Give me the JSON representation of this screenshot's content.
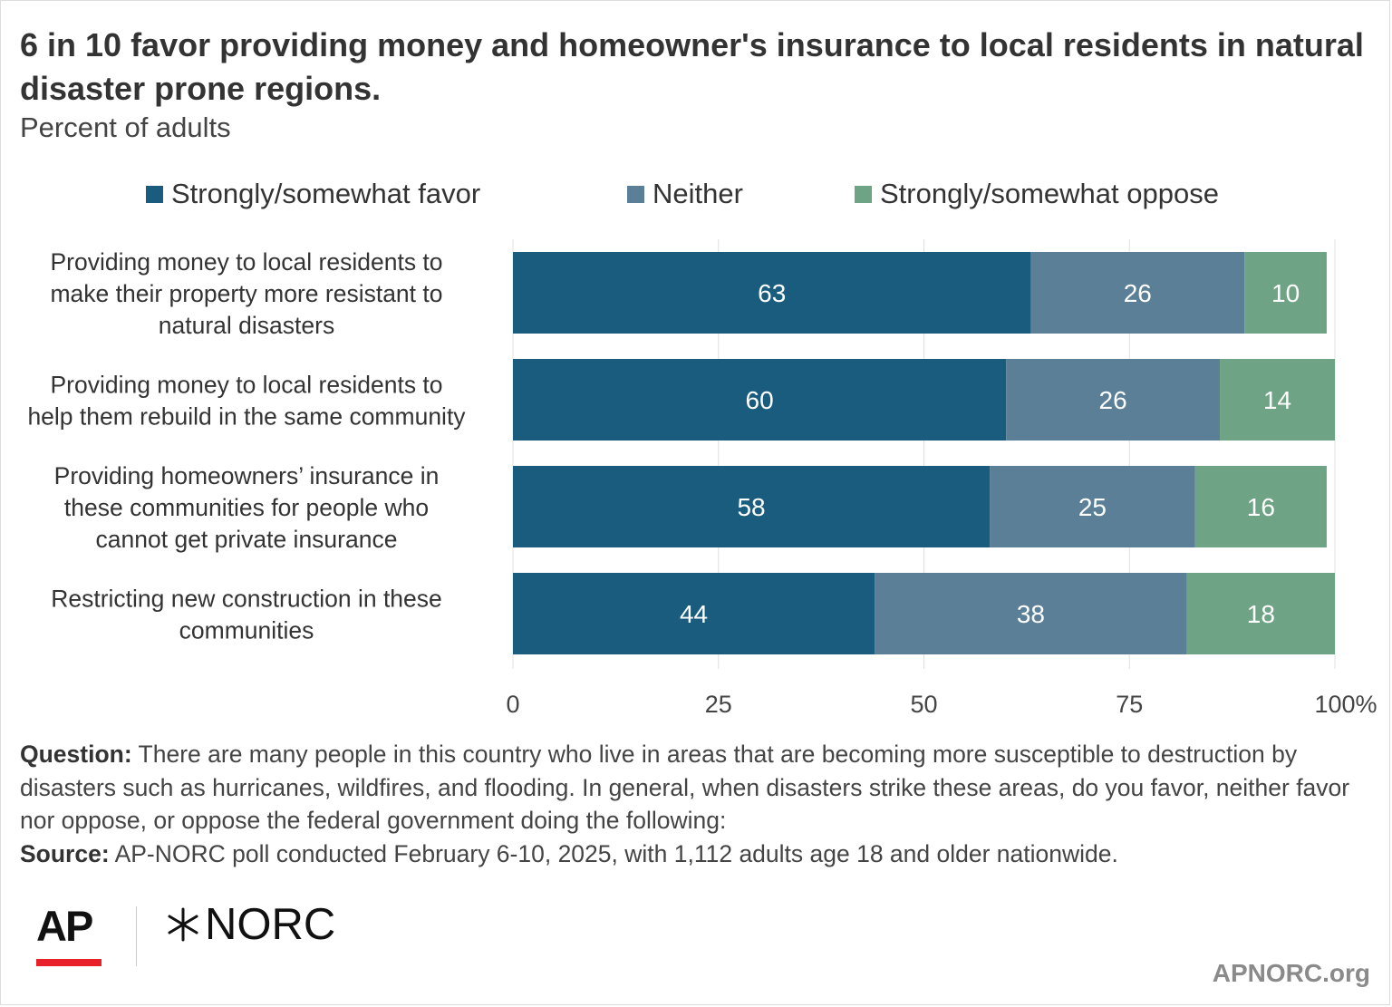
{
  "header": {
    "title": "6 in 10 favor providing money and homeowner's insurance to local residents in natural disaster prone regions.",
    "subtitle": "Percent of adults"
  },
  "chart_data": {
    "type": "bar",
    "orientation": "horizontal",
    "stacked": true,
    "categories": [
      "Providing money to local residents to make their property more resistant to natural disasters",
      "Providing money to local residents to help them rebuild in the same community",
      "Providing homeowners’ insurance in these communities for people who cannot get private insurance",
      "Restricting new construction in these communities"
    ],
    "category_lines": [
      [
        "Providing money to local residents to",
        "make their property more resistant to",
        "natural disasters"
      ],
      [
        "Providing money to local residents to",
        "help them rebuild in the same community"
      ],
      [
        "Providing homeowners’ insurance in",
        "these communities for people who",
        "cannot get private insurance"
      ],
      [
        "Restricting new construction in these",
        "communities"
      ]
    ],
    "series": [
      {
        "name": "Strongly/somewhat favor",
        "color": "#1a5c7e",
        "values": [
          63,
          60,
          58,
          44
        ]
      },
      {
        "name": "Neither",
        "color": "#5b7f96",
        "values": [
          26,
          26,
          25,
          38
        ]
      },
      {
        "name": "Strongly/somewhat oppose",
        "color": "#6fa385",
        "values": [
          10,
          14,
          16,
          18
        ]
      }
    ],
    "xlim": [
      0,
      100
    ],
    "x_ticks": [
      0,
      25,
      50,
      75,
      100
    ],
    "x_tick_labels": [
      "0",
      "25",
      "50",
      "75",
      "100%"
    ],
    "grid": true,
    "legend_position": "top"
  },
  "notes": {
    "question_label": "Question:",
    "question_text": " There are many people in this country who live in areas that are becoming more susceptible to destruction by disasters such as hurricanes, wildfires, and flooding. In general, when disasters strike these areas, do you favor, neither favor nor oppose, or oppose the federal government doing the following:",
    "source_label": "Source:",
    "source_text": " AP-NORC poll conducted February 6-10, 2025, with 1,112 adults age 18 and older nationwide."
  },
  "branding": {
    "ap_logo_text": "AP",
    "norc_logo_text": "NORC",
    "site": "APNORC.org"
  }
}
